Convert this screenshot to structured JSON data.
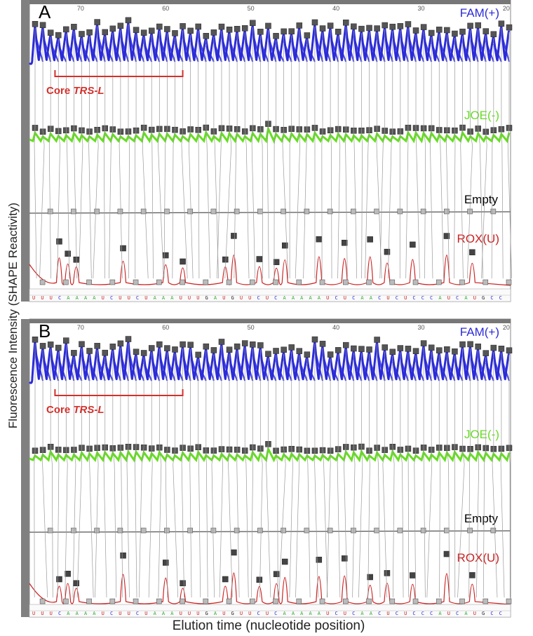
{
  "figure": {
    "ylabel": "Fluorescence Intensity (SHAPE Reactivity)",
    "xlabel": "Elution time (nucleotide position)"
  },
  "chart_data": [
    {
      "type": "line",
      "panel": "A",
      "x_ticks": [
        70,
        60,
        50,
        40,
        30,
        20
      ],
      "series": [
        {
          "name": "FAM(+)",
          "color": "#2b2bd9",
          "peak_count": 62
        },
        {
          "name": "JOE(-)",
          "color": "#66dd22"
        },
        {
          "name": "Empty",
          "color": "#555555"
        },
        {
          "name": "ROX(U)",
          "color": "#cc2222",
          "peak_positions": [
            72.5,
            71.5,
            70.5,
            65,
            60,
            58,
            53,
            52,
            49,
            47,
            46,
            42,
            39,
            36,
            34,
            31,
            27,
            24
          ]
        }
      ],
      "annotation": {
        "text_prefix": "Core ",
        "text_italic": "TRS-L",
        "range": [
          73,
          58
        ]
      },
      "sequence": "UUUCAAAAUCUUCUAAAUUUGAUGUUCUCAAAAAUCUCAACUCUCCCAUCAUGCC"
    },
    {
      "type": "line",
      "panel": "B",
      "x_ticks": [
        70,
        60,
        50,
        40,
        30,
        20
      ],
      "series": [
        {
          "name": "FAM(+)",
          "color": "#2b2bd9",
          "peak_count": 62
        },
        {
          "name": "JOE(-)",
          "color": "#66dd22"
        },
        {
          "name": "Empty",
          "color": "#555555"
        },
        {
          "name": "ROX(U)",
          "color": "#cc2222",
          "peak_positions": [
            72.5,
            71.5,
            70.5,
            65,
            60,
            58,
            53,
            52,
            49,
            47,
            46,
            42,
            39,
            36,
            34,
            31,
            27,
            24
          ]
        }
      ],
      "annotation": {
        "text_prefix": "Core ",
        "text_italic": "TRS-L",
        "range": [
          73,
          58
        ]
      },
      "sequence": "UUUCAAAAUCUUCUAAAUUUGAUGUUCUCAAAAAUCUCAACUCUCCCAUCAUGCC"
    }
  ]
}
